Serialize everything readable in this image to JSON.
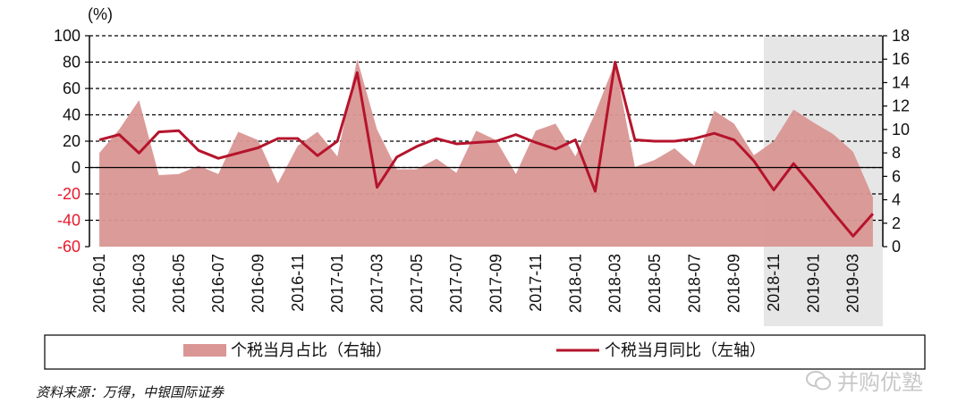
{
  "chart_data": {
    "type": "line+area",
    "unit_label": "(%)",
    "left_axis": {
      "ylim": [
        -60,
        100
      ],
      "ticks": [
        100,
        80,
        60,
        40,
        20,
        0,
        -20,
        -40,
        -60
      ]
    },
    "right_axis": {
      "ylim": [
        0,
        18
      ],
      "ticks": [
        18,
        16,
        14,
        12,
        10,
        8,
        6,
        4,
        2,
        0
      ]
    },
    "x": [
      "2016-01",
      "2016-02",
      "2016-03",
      "2016-04",
      "2016-05",
      "2016-06",
      "2016-07",
      "2016-08",
      "2016-09",
      "2016-10",
      "2016-11",
      "2016-12",
      "2017-01",
      "2017-02",
      "2017-03",
      "2017-04",
      "2017-05",
      "2017-06",
      "2017-07",
      "2017-08",
      "2017-09",
      "2017-10",
      "2017-11",
      "2017-12",
      "2018-01",
      "2018-02",
      "2018-03",
      "2018-04",
      "2018-05",
      "2018-06",
      "2018-07",
      "2018-08",
      "2018-09",
      "2018-10",
      "2018-11",
      "2018-12",
      "2019-01",
      "2019-02",
      "2019-03",
      "2019-04"
    ],
    "x_tick_labels": [
      "2016-01",
      "2016-03",
      "2016-05",
      "2016-07",
      "2016-09",
      "2016-11",
      "2017-01",
      "2017-03",
      "2017-05",
      "2017-07",
      "2017-09",
      "2017-11",
      "2018-01",
      "2018-03",
      "2018-05",
      "2018-07",
      "2018-09",
      "2018-11",
      "2019-01",
      "2019-03"
    ],
    "series": [
      {
        "name": "个税当月占比（右轴）",
        "axis": "right",
        "kind": "area",
        "color": "#d99694",
        "values": [
          8.0,
          10.0,
          12.5,
          6.1,
          6.2,
          6.9,
          6.2,
          9.8,
          9.1,
          5.4,
          8.6,
          9.8,
          7.7,
          16.0,
          10.0,
          6.6,
          6.6,
          7.5,
          6.3,
          9.9,
          9.1,
          6.2,
          9.9,
          10.5,
          7.7,
          11.4,
          15.7,
          6.8,
          7.4,
          8.4,
          6.9,
          11.6,
          10.5,
          7.8,
          9.0,
          11.7,
          10.6,
          9.6,
          8.1,
          4.2
        ]
      },
      {
        "name": "个税当月同比（左轴）",
        "axis": "left",
        "kind": "line",
        "color": "#b5142c",
        "values": [
          21,
          25,
          11,
          27,
          28,
          13,
          7,
          11,
          15,
          22,
          22,
          9,
          20,
          72,
          -15,
          8,
          16,
          22,
          18,
          19,
          20,
          25,
          19,
          14,
          21,
          -18,
          80,
          21,
          20,
          20,
          22,
          26,
          21,
          5,
          -17,
          3,
          -15,
          -34,
          -52,
          -35
        ]
      }
    ],
    "shaded_region": {
      "from": "2018-10",
      "to": "2019-04",
      "color": "#e6e6e6"
    },
    "legend": {
      "placement": "bottom",
      "entries": [
        "个税当月占比（右轴）",
        "个税当月同比（左轴）"
      ]
    }
  },
  "source_text": "资料来源：万得，中银国际证券",
  "watermark_text": "并购优塾"
}
